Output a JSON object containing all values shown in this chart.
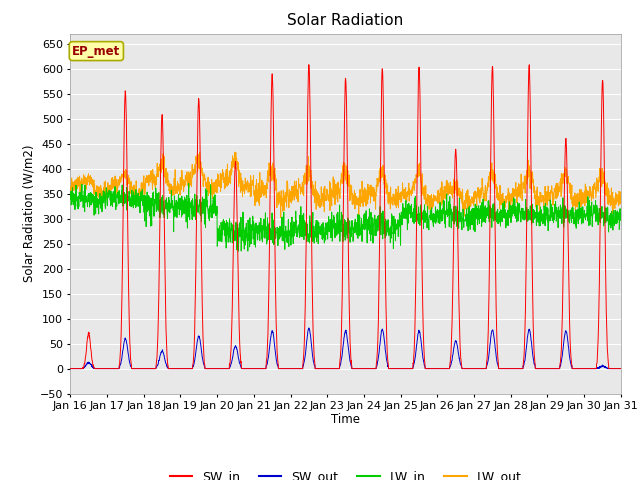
{
  "title": "Solar Radiation",
  "ylabel": "Solar Radiation (W/m2)",
  "xlabel": "Time",
  "ylim": [
    -50,
    670
  ],
  "colors": {
    "SW_in": "#ff0000",
    "SW_out": "#0000cd",
    "LW_in": "#00cc00",
    "LW_out": "#ffa500"
  },
  "ep_met_label": "EP_met",
  "ep_met_color": "#990000",
  "ep_met_bg": "#ffffaa",
  "ep_met_edge": "#aaaa00",
  "background_color": "#e8e8e8",
  "grid_color": "#ffffff",
  "start_day": 16,
  "end_day": 31,
  "points_per_day": 144,
  "sw_peaks": [
    70,
    555,
    508,
    540,
    415,
    590,
    610,
    580,
    600,
    605,
    440,
    605,
    605,
    460,
    578
  ],
  "sw_out_peaks": [
    12,
    60,
    35,
    65,
    45,
    75,
    80,
    75,
    78,
    75,
    55,
    78,
    78,
    75,
    5
  ],
  "lw_out_peaks": [
    15,
    25,
    35,
    40,
    45,
    45,
    45,
    45,
    45,
    45,
    10,
    45,
    45,
    45,
    40
  ]
}
